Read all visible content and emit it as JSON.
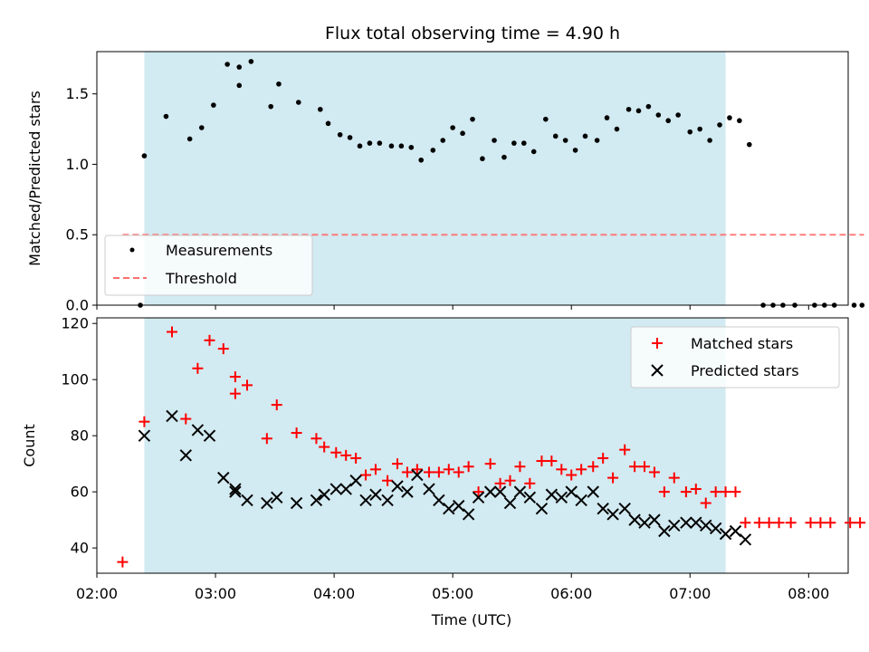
{
  "chart_data": [
    {
      "type": "scatter",
      "title": "Flux total observing time = 4.90 h",
      "xlabel": "",
      "ylabel": "Matched/Predicted stars",
      "xlim": [
        "02:00",
        "08:20"
      ],
      "ylim": [
        0,
        1.8
      ],
      "y_ticks": [
        "0.0",
        "0.5",
        "1.0",
        "1.5"
      ],
      "shaded_interval": [
        "02:24",
        "07:18"
      ],
      "shade_color": "#add8e6",
      "legend_position": "lower-left",
      "series": [
        {
          "name": "Measurements",
          "marker": "dot",
          "color": "#000000",
          "points": [
            [
              "02:22",
              0.0
            ],
            [
              "02:24",
              1.06
            ],
            [
              "02:35",
              1.34
            ],
            [
              "02:47",
              1.18
            ],
            [
              "02:53",
              1.26
            ],
            [
              "02:59",
              1.42
            ],
            [
              "03:06",
              1.71
            ],
            [
              "03:12",
              1.69
            ],
            [
              "03:12",
              1.56
            ],
            [
              "03:18",
              1.73
            ],
            [
              "03:28",
              1.41
            ],
            [
              "03:32",
              1.57
            ],
            [
              "03:42",
              1.44
            ],
            [
              "03:53",
              1.39
            ],
            [
              "03:57",
              1.29
            ],
            [
              "04:03",
              1.21
            ],
            [
              "04:08",
              1.19
            ],
            [
              "04:13",
              1.13
            ],
            [
              "04:18",
              1.15
            ],
            [
              "04:23",
              1.15
            ],
            [
              "04:29",
              1.13
            ],
            [
              "04:34",
              1.13
            ],
            [
              "04:39",
              1.12
            ],
            [
              "04:44",
              1.03
            ],
            [
              "04:50",
              1.1
            ],
            [
              "04:55",
              1.17
            ],
            [
              "05:00",
              1.26
            ],
            [
              "05:05",
              1.22
            ],
            [
              "05:10",
              1.32
            ],
            [
              "05:15",
              1.04
            ],
            [
              "05:21",
              1.17
            ],
            [
              "05:26",
              1.05
            ],
            [
              "05:31",
              1.15
            ],
            [
              "05:36",
              1.15
            ],
            [
              "05:41",
              1.09
            ],
            [
              "05:47",
              1.32
            ],
            [
              "05:52",
              1.2
            ],
            [
              "05:57",
              1.17
            ],
            [
              "06:02",
              1.1
            ],
            [
              "06:07",
              1.2
            ],
            [
              "06:13",
              1.17
            ],
            [
              "06:18",
              1.33
            ],
            [
              "06:23",
              1.25
            ],
            [
              "06:29",
              1.39
            ],
            [
              "06:34",
              1.38
            ],
            [
              "06:39",
              1.41
            ],
            [
              "06:44",
              1.35
            ],
            [
              "06:49",
              1.31
            ],
            [
              "06:54",
              1.35
            ],
            [
              "07:00",
              1.23
            ],
            [
              "07:05",
              1.25
            ],
            [
              "07:10",
              1.17
            ],
            [
              "07:15",
              1.28
            ],
            [
              "07:20",
              1.33
            ],
            [
              "07:25",
              1.31
            ],
            [
              "07:30",
              1.14
            ],
            [
              "07:37",
              0.0
            ],
            [
              "07:42",
              0.0
            ],
            [
              "07:47",
              0.0
            ],
            [
              "07:53",
              0.0
            ],
            [
              "08:03",
              0.0
            ],
            [
              "08:08",
              0.0
            ],
            [
              "08:13",
              0.0
            ],
            [
              "08:23",
              0.0
            ],
            [
              "08:27",
              0.0
            ]
          ]
        },
        {
          "name": "Threshold",
          "marker": "dashed-line",
          "color": "#ff6f6f",
          "points": [
            [
              "02:13",
              0.5
            ],
            [
              "08:28",
              0.5
            ]
          ]
        }
      ]
    },
    {
      "type": "scatter",
      "title": "",
      "xlabel": "Time (UTC)",
      "ylabel": "Count",
      "xlim": [
        "02:00",
        "08:20"
      ],
      "ylim": [
        31,
        122
      ],
      "y_ticks": [
        "40",
        "60",
        "80",
        "100",
        "120"
      ],
      "x_ticks": [
        "02:00",
        "03:00",
        "04:00",
        "05:00",
        "06:00",
        "07:00",
        "08:00"
      ],
      "shaded_interval": [
        "02:24",
        "07:18"
      ],
      "shade_color": "#add8e6",
      "legend_position": "upper-right",
      "series": [
        {
          "name": "Matched stars",
          "marker": "plus",
          "color": "#ff0000",
          "points": [
            [
              "02:13",
              35
            ],
            [
              "02:24",
              85
            ],
            [
              "02:38",
              117
            ],
            [
              "02:45",
              86
            ],
            [
              "02:51",
              104
            ],
            [
              "02:57",
              114
            ],
            [
              "03:04",
              111
            ],
            [
              "03:10",
              101
            ],
            [
              "03:10",
              95
            ],
            [
              "03:16",
              98
            ],
            [
              "03:26",
              79
            ],
            [
              "03:31",
              91
            ],
            [
              "03:41",
              81
            ],
            [
              "03:51",
              79
            ],
            [
              "03:55",
              76
            ],
            [
              "04:01",
              74
            ],
            [
              "04:06",
              73
            ],
            [
              "04:11",
              72
            ],
            [
              "04:16",
              66
            ],
            [
              "04:21",
              68
            ],
            [
              "04:27",
              64
            ],
            [
              "04:32",
              70
            ],
            [
              "04:37",
              67
            ],
            [
              "04:42",
              68
            ],
            [
              "04:48",
              67
            ],
            [
              "04:53",
              67
            ],
            [
              "04:58",
              68
            ],
            [
              "05:03",
              67
            ],
            [
              "05:08",
              69
            ],
            [
              "05:13",
              60
            ],
            [
              "05:19",
              70
            ],
            [
              "05:24",
              63
            ],
            [
              "05:29",
              64
            ],
            [
              "05:34",
              69
            ],
            [
              "05:39",
              63
            ],
            [
              "05:45",
              71
            ],
            [
              "05:50",
              71
            ],
            [
              "05:55",
              68
            ],
            [
              "06:00",
              66
            ],
            [
              "06:05",
              68
            ],
            [
              "06:11",
              69
            ],
            [
              "06:16",
              72
            ],
            [
              "06:21",
              65
            ],
            [
              "06:27",
              75
            ],
            [
              "06:32",
              69
            ],
            [
              "06:37",
              69
            ],
            [
              "06:42",
              67
            ],
            [
              "06:47",
              60
            ],
            [
              "06:52",
              65
            ],
            [
              "06:58",
              60
            ],
            [
              "07:03",
              61
            ],
            [
              "07:08",
              56
            ],
            [
              "07:13",
              60
            ],
            [
              "07:18",
              60
            ],
            [
              "07:23",
              60
            ],
            [
              "07:28",
              49
            ],
            [
              "07:35",
              49
            ],
            [
              "07:40",
              49
            ],
            [
              "07:45",
              49
            ],
            [
              "07:51",
              49
            ],
            [
              "08:01",
              49
            ],
            [
              "08:06",
              49
            ],
            [
              "08:11",
              49
            ],
            [
              "08:21",
              49
            ],
            [
              "08:26",
              49
            ]
          ]
        },
        {
          "name": "Predicted stars",
          "marker": "x",
          "color": "#000000",
          "points": [
            [
              "02:24",
              80
            ],
            [
              "02:38",
              87
            ],
            [
              "02:45",
              73
            ],
            [
              "02:51",
              82
            ],
            [
              "02:57",
              80
            ],
            [
              "03:04",
              65
            ],
            [
              "03:10",
              61
            ],
            [
              "03:10",
              60
            ],
            [
              "03:16",
              57
            ],
            [
              "03:26",
              56
            ],
            [
              "03:31",
              58
            ],
            [
              "03:41",
              56
            ],
            [
              "03:51",
              57
            ],
            [
              "03:55",
              59
            ],
            [
              "04:01",
              61
            ],
            [
              "04:06",
              61
            ],
            [
              "04:11",
              64
            ],
            [
              "04:16",
              57
            ],
            [
              "04:21",
              59
            ],
            [
              "04:27",
              57
            ],
            [
              "04:32",
              62
            ],
            [
              "04:37",
              60
            ],
            [
              "04:42",
              66
            ],
            [
              "04:48",
              61
            ],
            [
              "04:53",
              57
            ],
            [
              "04:58",
              54
            ],
            [
              "05:03",
              55
            ],
            [
              "05:08",
              52
            ],
            [
              "05:13",
              58
            ],
            [
              "05:19",
              60
            ],
            [
              "05:24",
              60
            ],
            [
              "05:29",
              56
            ],
            [
              "05:34",
              60
            ],
            [
              "05:39",
              58
            ],
            [
              "05:45",
              54
            ],
            [
              "05:50",
              59
            ],
            [
              "05:55",
              58
            ],
            [
              "06:00",
              60
            ],
            [
              "06:05",
              57
            ],
            [
              "06:11",
              60
            ],
            [
              "06:16",
              54
            ],
            [
              "06:21",
              52
            ],
            [
              "06:27",
              54
            ],
            [
              "06:32",
              50
            ],
            [
              "06:37",
              49
            ],
            [
              "06:42",
              50
            ],
            [
              "06:47",
              46
            ],
            [
              "06:52",
              48
            ],
            [
              "06:58",
              49
            ],
            [
              "07:03",
              49
            ],
            [
              "07:08",
              48
            ],
            [
              "07:13",
              47
            ],
            [
              "07:18",
              45
            ],
            [
              "07:23",
              46
            ],
            [
              "07:28",
              43
            ]
          ]
        }
      ]
    }
  ]
}
